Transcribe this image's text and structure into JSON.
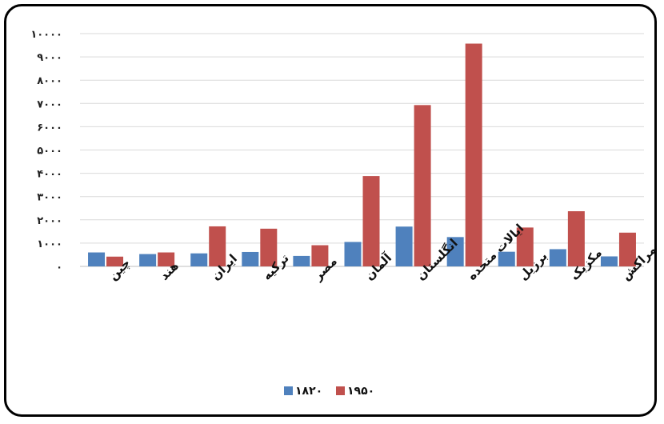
{
  "chart_data": {
    "type": "bar",
    "categories": [
      "چین",
      "هند",
      "ایران",
      "ترکیه",
      "مصر",
      "آلمان",
      "انگلستان",
      "ایالات متحده",
      "برزیل",
      "مکزیک",
      "مراکش"
    ],
    "series": [
      {
        "name": "۱۸۲۰",
        "color": "#4f81bd",
        "values": [
          600,
          530,
          560,
          620,
          450,
          1050,
          1710,
          1260,
          630,
          740,
          430
        ]
      },
      {
        "name": "۱۹۵۰",
        "color": "#c0504d",
        "values": [
          420,
          600,
          1720,
          1620,
          910,
          3880,
          6930,
          9570,
          1670,
          2370,
          1450
        ]
      }
    ],
    "y_ticks": [
      "۰",
      "۱۰۰۰",
      "۲۰۰۰",
      "۳۰۰۰",
      "۴۰۰۰",
      "۵۰۰۰",
      "۶۰۰۰",
      "۷۰۰۰",
      "۸۰۰۰",
      "۹۰۰۰",
      "۱۰۰۰۰"
    ],
    "ylim": [
      0,
      10000
    ],
    "grid": true,
    "legend_position": "bottom",
    "title": "",
    "xlabel": "",
    "ylabel": ""
  }
}
